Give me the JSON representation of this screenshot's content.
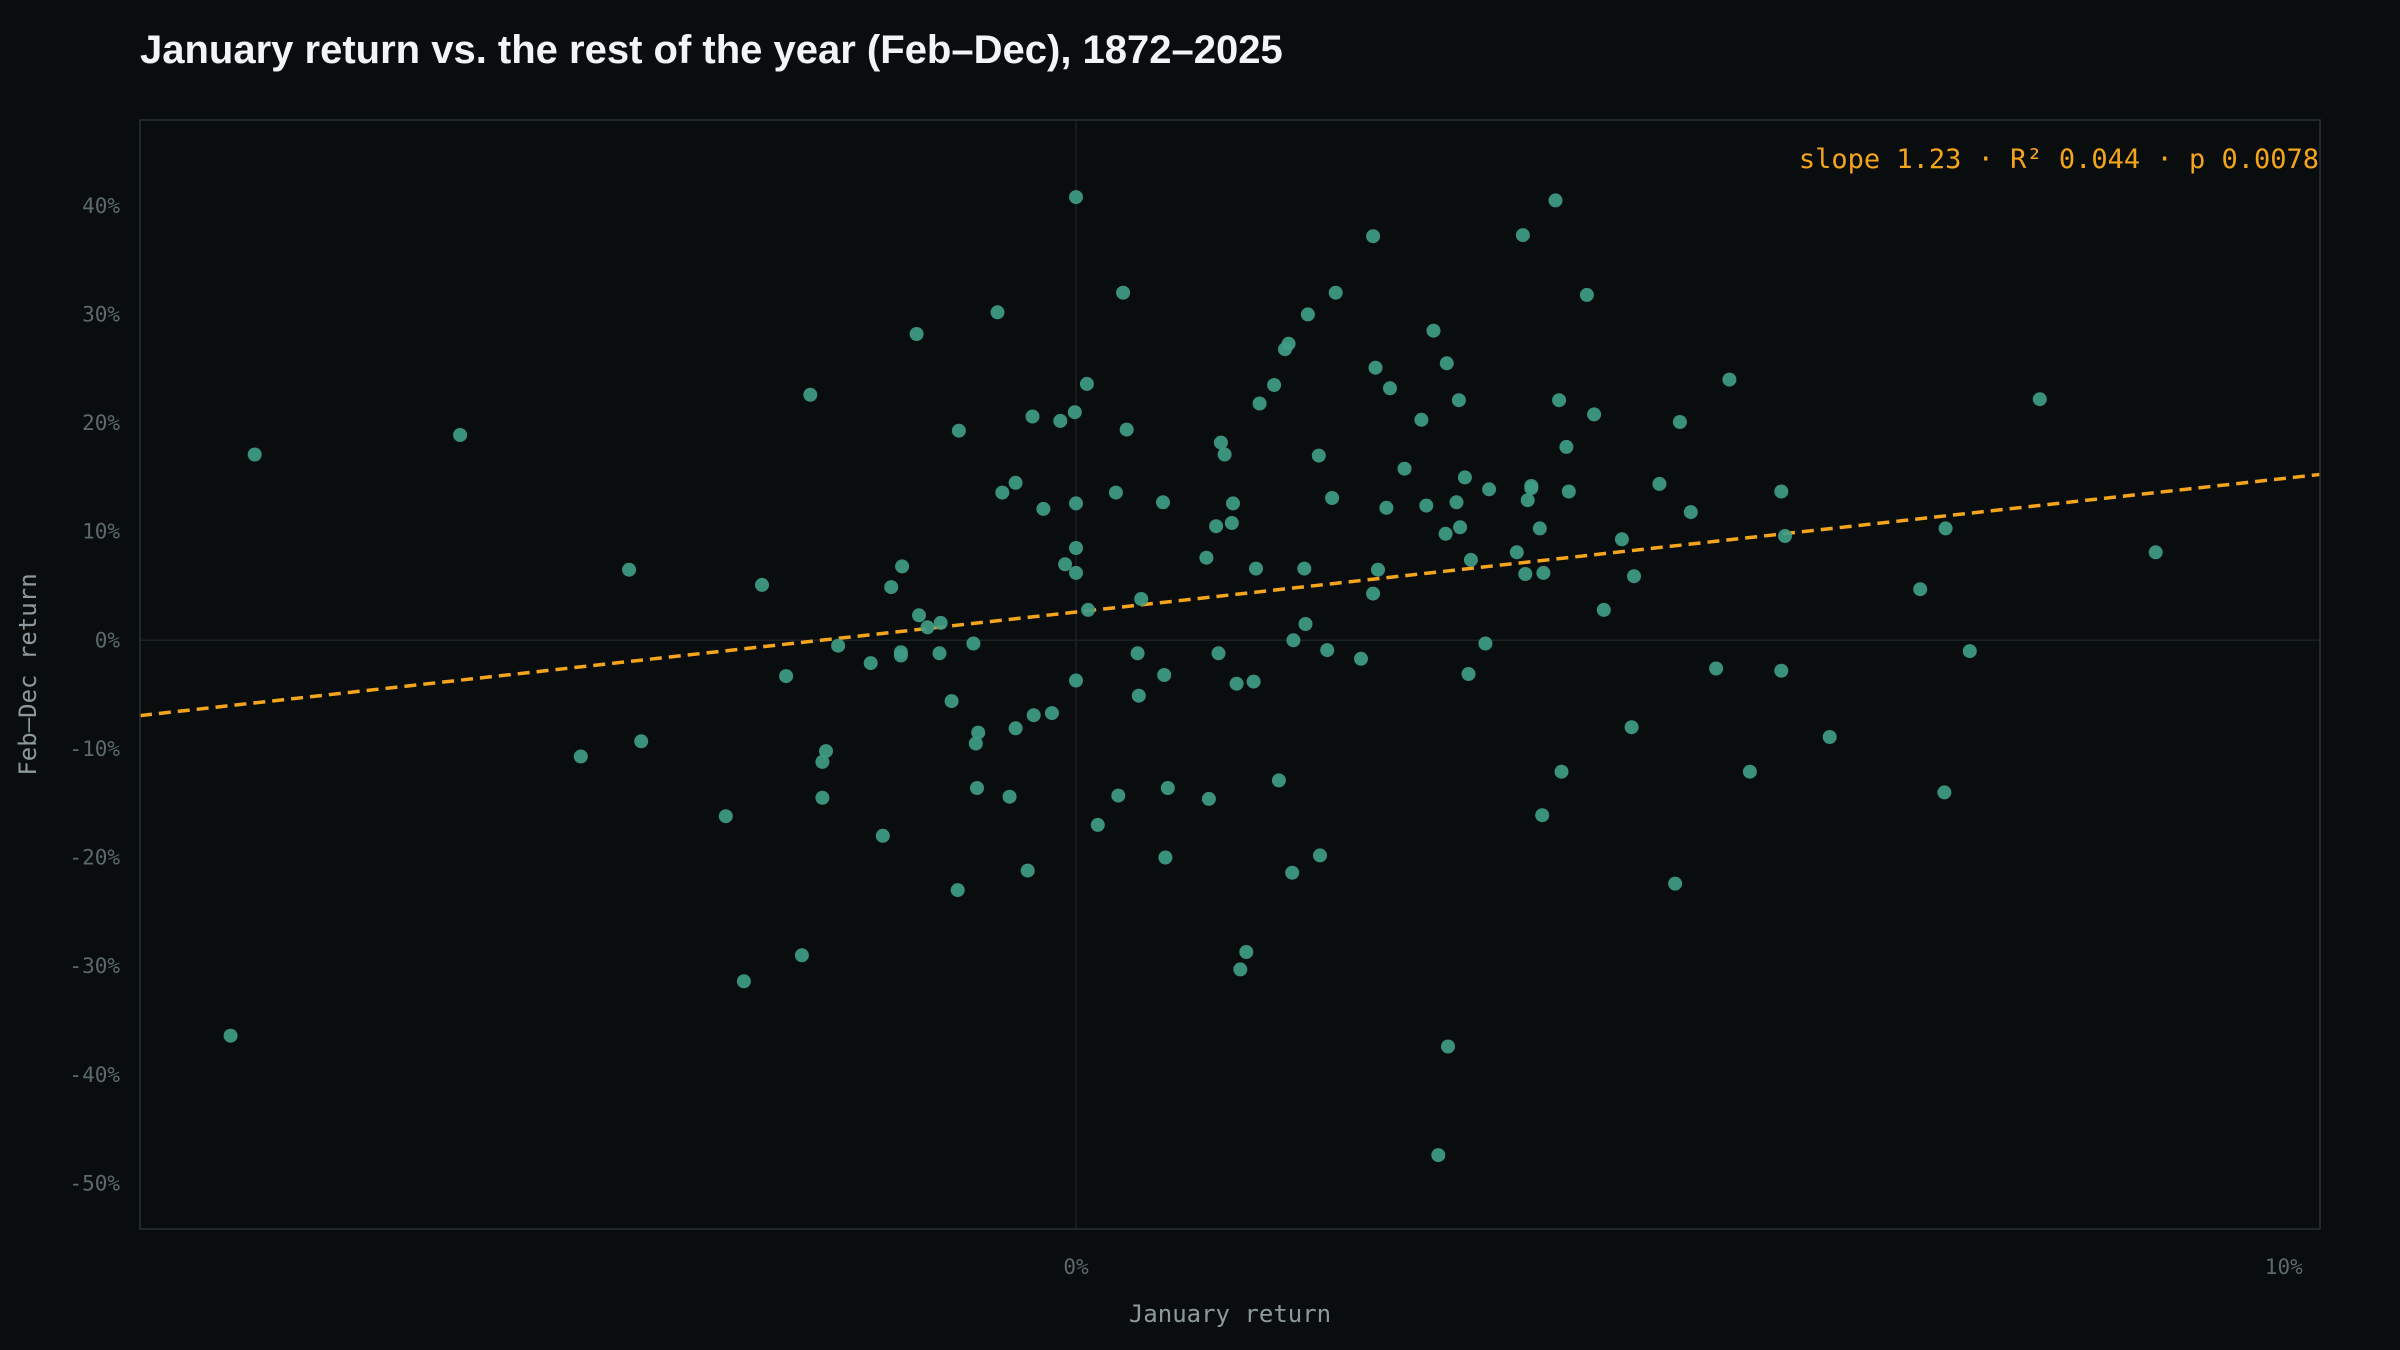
{
  "chart_data": {
    "type": "scatter",
    "title": "January return vs. the rest of the year (Feb–Dec), 1872–2025",
    "xlabel": "January return",
    "ylabel": "Feb–Dec return",
    "x_ticks": [
      {
        "value": 0,
        "label": "0%"
      },
      {
        "value": 10,
        "label": "10%"
      }
    ],
    "y_ticks": [
      {
        "value": 40,
        "label": "40%"
      },
      {
        "value": 30,
        "label": "30%"
      },
      {
        "value": 20,
        "label": "20%"
      },
      {
        "value": 10,
        "label": "10%"
      },
      {
        "value": 0,
        "label": "0%"
      },
      {
        "value": -10,
        "label": "-10%"
      },
      {
        "value": -20,
        "label": "-20%"
      },
      {
        "value": -30,
        "label": "-30%"
      },
      {
        "value": -40,
        "label": "-40%"
      },
      {
        "value": -50,
        "label": "-50%"
      }
    ],
    "xlim": [
      -7.75,
      10.3
    ],
    "ylim": [
      -54.2,
      47.9
    ],
    "grid": "zero lines only",
    "colors": {
      "background": "#0a0d0e",
      "points": "#3f9c85",
      "trend": "#f5a51c",
      "frame": "#273133",
      "zero_line": "#1b2224"
    },
    "trend_line": {
      "slope": 1.23,
      "intercept": 2.6,
      "style": "dashed",
      "annotation": "slope 1.23 · R² 0.044 · p 0.0078"
    },
    "points": [
      [
        -6.8,
        17.1
      ],
      [
        -7.0,
        -36.4
      ],
      [
        -5.1,
        18.9
      ],
      [
        -4.1,
        -10.7
      ],
      [
        -3.7,
        6.5
      ],
      [
        -3.6,
        -9.3
      ],
      [
        -2.9,
        -16.2
      ],
      [
        -2.75,
        -31.4
      ],
      [
        -2.6,
        5.1
      ],
      [
        -2.4,
        -3.3
      ],
      [
        -2.27,
        -29.0
      ],
      [
        -2.2,
        22.6
      ],
      [
        -2.1,
        -11.2
      ],
      [
        -2.1,
        -14.5
      ],
      [
        -2.07,
        -10.2
      ],
      [
        -1.97,
        -0.5
      ],
      [
        -1.7,
        -2.1
      ],
      [
        -1.6,
        -18.0
      ],
      [
        -1.53,
        4.9
      ],
      [
        -1.45,
        -1.4
      ],
      [
        -1.45,
        -1.1
      ],
      [
        -1.44,
        6.8
      ],
      [
        -1.32,
        28.2
      ],
      [
        -1.3,
        2.3
      ],
      [
        -1.23,
        1.2
      ],
      [
        -1.13,
        -1.2
      ],
      [
        -1.12,
        1.6
      ],
      [
        -1.03,
        -5.6
      ],
      [
        -0.98,
        -23.0
      ],
      [
        -0.97,
        19.3
      ],
      [
        -0.85,
        -0.3
      ],
      [
        -0.83,
        -9.5
      ],
      [
        -0.82,
        -13.6
      ],
      [
        -0.81,
        -8.5
      ],
      [
        -0.65,
        30.2
      ],
      [
        -0.61,
        13.6
      ],
      [
        -0.55,
        -14.4
      ],
      [
        -0.5,
        14.5
      ],
      [
        -0.5,
        -8.1
      ],
      [
        -0.4,
        -21.2
      ],
      [
        -0.35,
        -6.9
      ],
      [
        -0.36,
        20.6
      ],
      [
        -0.27,
        12.1
      ],
      [
        -0.2,
        -6.7
      ],
      [
        -0.13,
        20.2
      ],
      [
        -0.09,
        7.0
      ],
      [
        0.0,
        40.8
      ],
      [
        -0.01,
        21.0
      ],
      [
        0.0,
        12.6
      ],
      [
        0.0,
        8.5
      ],
      [
        0.0,
        6.2
      ],
      [
        0.0,
        -3.7
      ],
      [
        0.09,
        23.6
      ],
      [
        0.1,
        2.8
      ],
      [
        0.18,
        -17.0
      ],
      [
        0.33,
        13.6
      ],
      [
        0.35,
        -14.3
      ],
      [
        0.39,
        32.0
      ],
      [
        0.42,
        19.4
      ],
      [
        0.51,
        -1.2
      ],
      [
        0.52,
        -5.1
      ],
      [
        0.54,
        3.8
      ],
      [
        0.72,
        12.7
      ],
      [
        0.73,
        -3.2
      ],
      [
        0.74,
        -20.0
      ],
      [
        0.76,
        -13.6
      ],
      [
        1.08,
        7.6
      ],
      [
        1.1,
        -14.6
      ],
      [
        1.16,
        10.5
      ],
      [
        1.18,
        -1.2
      ],
      [
        1.2,
        18.2
      ],
      [
        1.23,
        17.1
      ],
      [
        1.29,
        10.8
      ],
      [
        1.3,
        12.6
      ],
      [
        1.33,
        -4.0
      ],
      [
        1.36,
        -30.3
      ],
      [
        1.41,
        -28.7
      ],
      [
        1.47,
        -3.8
      ],
      [
        1.49,
        6.6
      ],
      [
        1.52,
        21.8
      ],
      [
        1.64,
        23.5
      ],
      [
        1.68,
        -12.9
      ],
      [
        1.73,
        26.8
      ],
      [
        1.76,
        27.3
      ],
      [
        1.79,
        -21.4
      ],
      [
        1.8,
        0.0
      ],
      [
        1.89,
        6.6
      ],
      [
        1.9,
        1.5
      ],
      [
        1.92,
        30.0
      ],
      [
        2.01,
        17.0
      ],
      [
        2.02,
        -19.8
      ],
      [
        2.08,
        -0.9
      ],
      [
        2.12,
        13.1
      ],
      [
        2.15,
        32.0
      ],
      [
        2.36,
        -1.7
      ],
      [
        2.46,
        37.2
      ],
      [
        2.46,
        4.3
      ],
      [
        2.48,
        25.1
      ],
      [
        2.5,
        6.5
      ],
      [
        2.57,
        12.2
      ],
      [
        2.6,
        23.2
      ],
      [
        2.72,
        15.8
      ],
      [
        2.86,
        20.3
      ],
      [
        2.9,
        12.4
      ],
      [
        2.96,
        28.5
      ],
      [
        3.0,
        -47.4
      ],
      [
        3.06,
        9.8
      ],
      [
        3.07,
        25.5
      ],
      [
        3.08,
        -37.4
      ],
      [
        3.15,
        12.7
      ],
      [
        3.17,
        22.1
      ],
      [
        3.18,
        10.4
      ],
      [
        3.22,
        15.0
      ],
      [
        3.25,
        -3.1
      ],
      [
        3.27,
        7.4
      ],
      [
        3.39,
        -0.3
      ],
      [
        3.42,
        13.9
      ],
      [
        3.65,
        8.1
      ],
      [
        3.7,
        37.3
      ],
      [
        3.72,
        6.1
      ],
      [
        3.74,
        12.9
      ],
      [
        3.77,
        14.2
      ],
      [
        3.77,
        14.0
      ],
      [
        3.84,
        10.3
      ],
      [
        3.86,
        -16.1
      ],
      [
        3.87,
        6.2
      ],
      [
        3.97,
        40.5
      ],
      [
        4.0,
        22.1
      ],
      [
        4.02,
        -12.1
      ],
      [
        4.06,
        17.8
      ],
      [
        4.08,
        13.7
      ],
      [
        4.23,
        31.8
      ],
      [
        4.29,
        20.8
      ],
      [
        4.37,
        2.8
      ],
      [
        4.52,
        9.3
      ],
      [
        4.6,
        -8.0
      ],
      [
        4.62,
        5.9
      ],
      [
        4.83,
        14.4
      ],
      [
        4.96,
        -22.4
      ],
      [
        5.0,
        20.1
      ],
      [
        5.09,
        11.8
      ],
      [
        5.3,
        -2.6
      ],
      [
        5.41,
        24.0
      ],
      [
        5.58,
        -12.1
      ],
      [
        5.84,
        13.7
      ],
      [
        5.84,
        -2.8
      ],
      [
        5.87,
        9.6
      ],
      [
        6.24,
        -8.9
      ],
      [
        6.99,
        4.7
      ],
      [
        7.19,
        -14.0
      ],
      [
        7.2,
        10.3
      ],
      [
        7.4,
        -1.0
      ],
      [
        7.98,
        22.2
      ],
      [
        8.94,
        8.1
      ]
    ]
  }
}
